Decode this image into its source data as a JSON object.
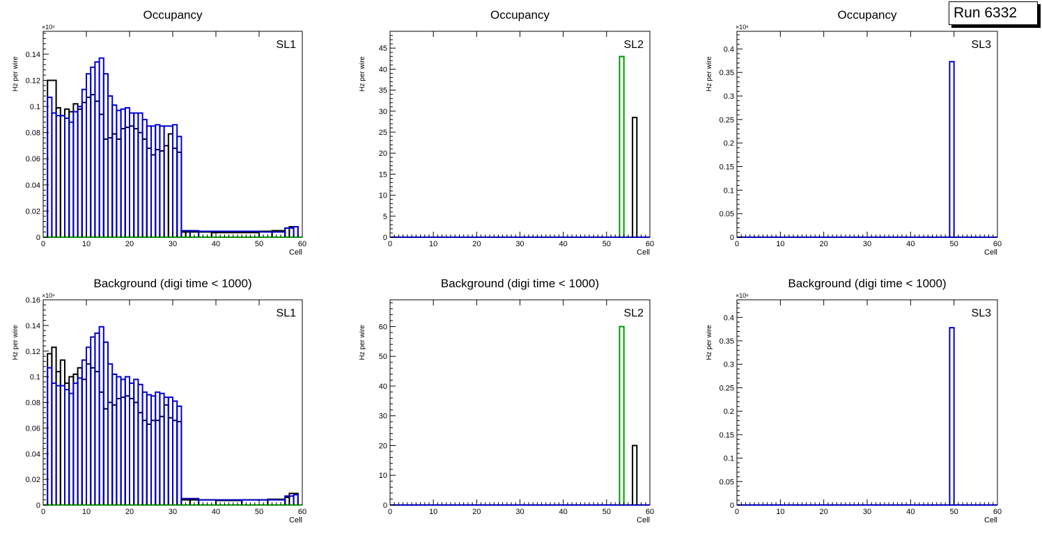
{
  "run_label": "Run 6332",
  "colors": {
    "black": "#000000",
    "green": "#009900",
    "blue": "#0000cc"
  },
  "chart_data": [
    {
      "type": "step-histogram",
      "title": "Occupancy",
      "layer": "SL1",
      "xlabel": "Cell",
      "ylabel": "Hz per wire",
      "exponent": "×10⁶",
      "xlim": [
        0,
        60
      ],
      "ylim": [
        0,
        0.1575
      ],
      "xticks": [
        0,
        10,
        20,
        30,
        40,
        50,
        60
      ],
      "xtick_labels": [
        "0",
        "10",
        "20",
        "30",
        "40",
        "50",
        "60"
      ],
      "yticks": [
        0,
        0.02,
        0.04,
        0.06,
        0.08,
        0.1,
        0.12,
        0.14
      ],
      "ytick_labels": [
        "0",
        "0.02",
        "0.04",
        "0.06",
        "0.08",
        "0.1",
        "0.12",
        "0.14"
      ],
      "series": [
        {
          "name": "black",
          "color": "#000000",
          "bins": [
            [
              1,
              3,
              0.12
            ],
            [
              3,
              4,
              0.099
            ],
            [
              4,
              5,
              0.093
            ],
            [
              5,
              6,
              0.098
            ],
            [
              6,
              7,
              0.096
            ],
            [
              7,
              8,
              0.102
            ],
            [
              8,
              9,
              0.098
            ],
            [
              9,
              10,
              0.103
            ],
            [
              10,
              11,
              0.107
            ],
            [
              11,
              12,
              0.109
            ],
            [
              12,
              13,
              0.104
            ],
            [
              13,
              14,
              0.094
            ],
            [
              14,
              15,
              0.075
            ],
            [
              15,
              16,
              0.076
            ],
            [
              16,
              17,
              0.079
            ],
            [
              17,
              18,
              0.075
            ],
            [
              18,
              19,
              0.083
            ],
            [
              19,
              20,
              0.084
            ],
            [
              20,
              21,
              0.085
            ],
            [
              21,
              22,
              0.083
            ],
            [
              22,
              23,
              0.08
            ],
            [
              23,
              24,
              0.075
            ],
            [
              24,
              25,
              0.068
            ],
            [
              25,
              26,
              0.063
            ],
            [
              26,
              27,
              0.067
            ],
            [
              27,
              28,
              0.066
            ],
            [
              28,
              29,
              0.07
            ],
            [
              29,
              30,
              0.079
            ],
            [
              30,
              31,
              0.068
            ],
            [
              31,
              32,
              0.065
            ],
            [
              32,
              33,
              0.004
            ],
            [
              33,
              39,
              0.004
            ],
            [
              39,
              50,
              0.0035
            ],
            [
              50,
              53,
              0.0045
            ],
            [
              53,
              56,
              0.005
            ],
            [
              56,
              57,
              0.007
            ],
            [
              57,
              59,
              0.008
            ]
          ]
        },
        {
          "name": "blue",
          "color": "#0000cc",
          "bins": [
            [
              1,
              2,
              0.107
            ],
            [
              2,
              3,
              0.095
            ],
            [
              3,
              5,
              0.093
            ],
            [
              5,
              6,
              0.091
            ],
            [
              6,
              7,
              0.088
            ],
            [
              7,
              8,
              0.096
            ],
            [
              8,
              9,
              0.1
            ],
            [
              9,
              10,
              0.113
            ],
            [
              10,
              11,
              0.125
            ],
            [
              11,
              12,
              0.13
            ],
            [
              12,
              13,
              0.134
            ],
            [
              13,
              14,
              0.137
            ],
            [
              14,
              15,
              0.125
            ],
            [
              15,
              16,
              0.108
            ],
            [
              16,
              17,
              0.101
            ],
            [
              17,
              18,
              0.097
            ],
            [
              18,
              19,
              0.098
            ],
            [
              19,
              20,
              0.099
            ],
            [
              20,
              21,
              0.095
            ],
            [
              21,
              22,
              0.095
            ],
            [
              22,
              23,
              0.095
            ],
            [
              23,
              24,
              0.09
            ],
            [
              24,
              25,
              0.085
            ],
            [
              25,
              26,
              0.085
            ],
            [
              26,
              27,
              0.086
            ],
            [
              27,
              28,
              0.085
            ],
            [
              28,
              30,
              0.085
            ],
            [
              30,
              31,
              0.086
            ],
            [
              31,
              32,
              0.077
            ],
            [
              32,
              34,
              0.005
            ],
            [
              34,
              36,
              0.005
            ],
            [
              36,
              50,
              0.0045
            ],
            [
              50,
              56,
              0.004
            ],
            [
              56,
              58,
              0.007
            ],
            [
              58,
              59,
              0.008
            ]
          ]
        },
        {
          "name": "green",
          "color": "#009900",
          "bins": [
            [
              0,
              60,
              0
            ]
          ]
        }
      ]
    },
    {
      "type": "step-histogram",
      "title": "Occupancy",
      "layer": "SL2",
      "xlabel": "Cell",
      "ylabel": "Hz per wire",
      "exponent": "",
      "xlim": [
        0,
        60
      ],
      "ylim": [
        0,
        49
      ],
      "xticks": [
        0,
        10,
        20,
        30,
        40,
        50,
        60
      ],
      "xtick_labels": [
        "0",
        "10",
        "20",
        "30",
        "40",
        "50",
        "60"
      ],
      "yticks": [
        0,
        5,
        10,
        15,
        20,
        25,
        30,
        35,
        40,
        45
      ],
      "ytick_labels": [
        "0",
        "5",
        "10",
        "15",
        "20",
        "25",
        "30",
        "35",
        "40",
        "45"
      ],
      "series": [
        {
          "name": "blue",
          "color": "#0000cc",
          "bins": [
            [
              0,
              60,
              0
            ]
          ]
        },
        {
          "name": "green",
          "color": "#009900",
          "bins": [
            [
              53,
              54,
              43
            ]
          ]
        },
        {
          "name": "black",
          "color": "#000000",
          "bins": [
            [
              56,
              57,
              28.5
            ]
          ]
        }
      ]
    },
    {
      "type": "step-histogram",
      "title": "Occupancy",
      "layer": "SL3",
      "xlabel": "Cell",
      "ylabel": "Hz per wire",
      "exponent": "×10⁶",
      "xlim": [
        0,
        60
      ],
      "ylim": [
        0,
        0.4375
      ],
      "xticks": [
        0,
        10,
        20,
        30,
        40,
        50,
        60
      ],
      "xtick_labels": [
        "0",
        "10",
        "20",
        "30",
        "40",
        "50",
        "60"
      ],
      "yticks": [
        0,
        0.05,
        0.1,
        0.15,
        0.2,
        0.25,
        0.3,
        0.35,
        0.4
      ],
      "ytick_labels": [
        "0",
        "0.05",
        "0.1",
        "0.15",
        "0.2",
        "0.25",
        "0.3",
        "0.35",
        "0.4"
      ],
      "series": [
        {
          "name": "blue",
          "color": "#0000cc",
          "bins": [
            [
              0,
              60,
              0
            ],
            [
              49,
              50,
              0.373
            ]
          ]
        }
      ]
    },
    {
      "type": "step-histogram",
      "title": "Background (digi time < 1000)",
      "layer": "SL1",
      "xlabel": "Cell",
      "ylabel": "Hz per wire",
      "exponent": "×10⁶",
      "xlim": [
        0,
        60
      ],
      "ylim": [
        0,
        0.16
      ],
      "xticks": [
        0,
        10,
        20,
        30,
        40,
        50,
        60
      ],
      "xtick_labels": [
        "0",
        "10",
        "20",
        "30",
        "40",
        "50",
        "60"
      ],
      "yticks": [
        0,
        0.02,
        0.04,
        0.06,
        0.08,
        0.1,
        0.12,
        0.14,
        0.16
      ],
      "ytick_labels": [
        "0",
        "0.02",
        "0.04",
        "0.06",
        "0.08",
        "0.1",
        "0.12",
        "0.14",
        "0.16"
      ],
      "series": [
        {
          "name": "black",
          "color": "#000000",
          "bins": [
            [
              1,
              2,
              0.118
            ],
            [
              2,
              3,
              0.123
            ],
            [
              3,
              4,
              0.104
            ],
            [
              4,
              5,
              0.113
            ],
            [
              5,
              6,
              0.095
            ],
            [
              6,
              7,
              0.1
            ],
            [
              7,
              8,
              0.102
            ],
            [
              8,
              9,
              0.107
            ],
            [
              9,
              10,
              0.098
            ],
            [
              10,
              11,
              0.11
            ],
            [
              11,
              12,
              0.107
            ],
            [
              12,
              13,
              0.104
            ],
            [
              13,
              14,
              0.088
            ],
            [
              14,
              15,
              0.075
            ],
            [
              15,
              16,
              0.08
            ],
            [
              16,
              17,
              0.078
            ],
            [
              17,
              18,
              0.083
            ],
            [
              18,
              19,
              0.084
            ],
            [
              19,
              20,
              0.085
            ],
            [
              20,
              21,
              0.083
            ],
            [
              21,
              22,
              0.08
            ],
            [
              22,
              23,
              0.072
            ],
            [
              23,
              24,
              0.066
            ],
            [
              24,
              25,
              0.063
            ],
            [
              25,
              26,
              0.066
            ],
            [
              26,
              27,
              0.066
            ],
            [
              27,
              28,
              0.069
            ],
            [
              28,
              29,
              0.078
            ],
            [
              29,
              30,
              0.068
            ],
            [
              30,
              31,
              0.066
            ],
            [
              31,
              32,
              0.065
            ],
            [
              32,
              34,
              0.004
            ],
            [
              34,
              40,
              0.004
            ],
            [
              40,
              46,
              0.0035
            ],
            [
              46,
              52,
              0.004
            ],
            [
              52,
              56,
              0.0045
            ],
            [
              56,
              57,
              0.006
            ],
            [
              57,
              59,
              0.009
            ]
          ]
        },
        {
          "name": "blue",
          "color": "#0000cc",
          "bins": [
            [
              1,
              2,
              0.107
            ],
            [
              2,
              3,
              0.095
            ],
            [
              3,
              5,
              0.093
            ],
            [
              5,
              6,
              0.09
            ],
            [
              6,
              7,
              0.087
            ],
            [
              7,
              8,
              0.095
            ],
            [
              8,
              9,
              0.099
            ],
            [
              9,
              10,
              0.113
            ],
            [
              10,
              11,
              0.123
            ],
            [
              11,
              12,
              0.131
            ],
            [
              12,
              13,
              0.134
            ],
            [
              13,
              14,
              0.139
            ],
            [
              14,
              15,
              0.127
            ],
            [
              15,
              16,
              0.11
            ],
            [
              16,
              17,
              0.102
            ],
            [
              17,
              18,
              0.1
            ],
            [
              18,
              19,
              0.098
            ],
            [
              19,
              20,
              0.1
            ],
            [
              20,
              21,
              0.095
            ],
            [
              21,
              22,
              0.098
            ],
            [
              22,
              23,
              0.094
            ],
            [
              23,
              24,
              0.088
            ],
            [
              24,
              25,
              0.086
            ],
            [
              25,
              26,
              0.085
            ],
            [
              26,
              27,
              0.088
            ],
            [
              27,
              28,
              0.087
            ],
            [
              28,
              29,
              0.084
            ],
            [
              29,
              30,
              0.084
            ],
            [
              30,
              31,
              0.081
            ],
            [
              31,
              32,
              0.077
            ],
            [
              32,
              36,
              0.005
            ],
            [
              36,
              46,
              0.004
            ],
            [
              46,
              56,
              0.004
            ],
            [
              56,
              58,
              0.007
            ],
            [
              58,
              59,
              0.008
            ]
          ]
        },
        {
          "name": "green",
          "color": "#009900",
          "bins": [
            [
              0,
              60,
              0
            ]
          ]
        }
      ]
    },
    {
      "type": "step-histogram",
      "title": "Background (digi time < 1000)",
      "layer": "SL2",
      "xlabel": "Cell",
      "ylabel": "Hz per wire",
      "exponent": "",
      "xlim": [
        0,
        60
      ],
      "ylim": [
        0,
        69
      ],
      "xticks": [
        0,
        10,
        20,
        30,
        40,
        50,
        60
      ],
      "xtick_labels": [
        "0",
        "10",
        "20",
        "30",
        "40",
        "50",
        "60"
      ],
      "yticks": [
        0,
        10,
        20,
        30,
        40,
        50,
        60
      ],
      "ytick_labels": [
        "0",
        "10",
        "20",
        "30",
        "40",
        "50",
        "60"
      ],
      "series": [
        {
          "name": "blue",
          "color": "#0000cc",
          "bins": [
            [
              0,
              60,
              0
            ]
          ]
        },
        {
          "name": "green",
          "color": "#009900",
          "bins": [
            [
              53,
              54,
              60
            ]
          ]
        },
        {
          "name": "black",
          "color": "#000000",
          "bins": [
            [
              56,
              57,
              20
            ]
          ]
        }
      ]
    },
    {
      "type": "step-histogram",
      "title": "Background (digi time < 1000)",
      "layer": "SL3",
      "xlabel": "Cell",
      "ylabel": "Hz per wire",
      "exponent": "×10⁶",
      "xlim": [
        0,
        60
      ],
      "ylim": [
        0,
        0.4375
      ],
      "xticks": [
        0,
        10,
        20,
        30,
        40,
        50,
        60
      ],
      "xtick_labels": [
        "0",
        "10",
        "20",
        "30",
        "40",
        "50",
        "60"
      ],
      "yticks": [
        0,
        0.05,
        0.1,
        0.15,
        0.2,
        0.25,
        0.3,
        0.35,
        0.4
      ],
      "ytick_labels": [
        "0",
        "0.05",
        "0.1",
        "0.15",
        "0.2",
        "0.25",
        "0.3",
        "0.35",
        "0.4"
      ],
      "series": [
        {
          "name": "blue",
          "color": "#0000cc",
          "bins": [
            [
              0,
              60,
              0
            ],
            [
              49,
              50,
              0.378
            ]
          ]
        }
      ]
    }
  ]
}
